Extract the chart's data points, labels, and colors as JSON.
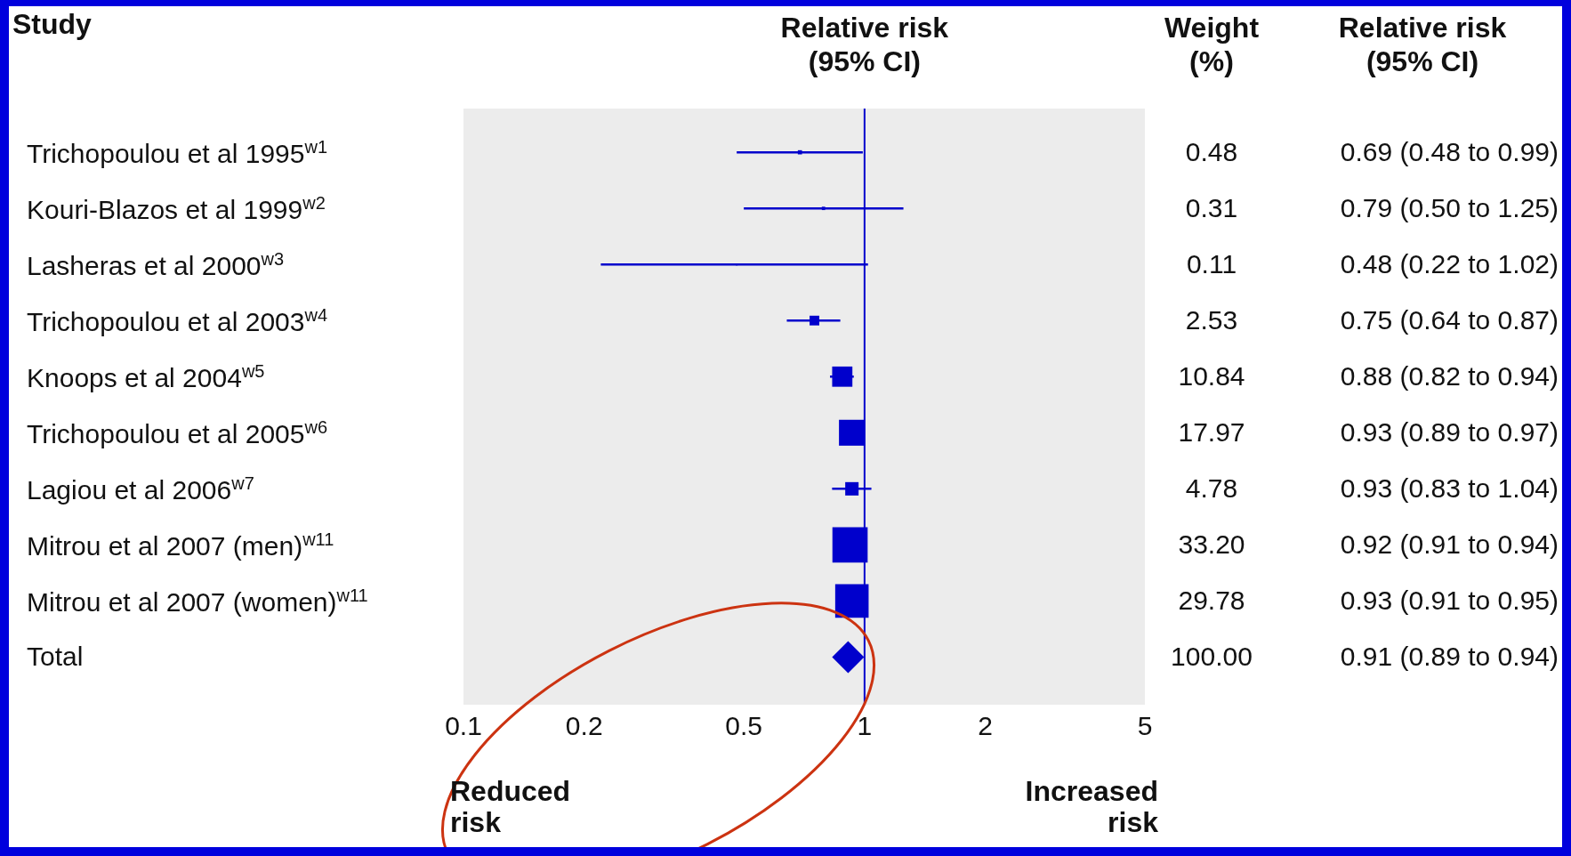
{
  "chart_data": {
    "type": "scatter",
    "orientation": "horizontal",
    "xlabel": "Relative risk (95% CI)",
    "categories": [
      "Trichopoulou et al 1995$^{w1}$",
      "Kouri-Blazos et al 1999$^{w2}$",
      "Lasheras et al 2000$^{w3}$",
      "Trichopoulou et al 2003$^{w4}$",
      "Knoops et al 2004$^{w5}$",
      "Trichopoulou et al 2005$^{w6}$",
      "Lagiou et al 2006$^{w7}$",
      "Mitrou et al 2007 (men)$^{w11}$",
      "Mitrou et al 2007 (women)$^{w11}$",
      "Total"
    ],
    "xlim": [
      0.1,
      5
    ],
    "xticks": [
      0.1,
      0.2,
      0.5,
      1,
      2,
      5
    ],
    "log": "x",
    "legend": false,
    "ref_lines": [
      {
        "axis": "x",
        "value": 1,
        "color": "#0000cc"
      }
    ],
    "annotations": [
      "Study",
      "Weight (%)",
      "Relative risk (95% CI)",
      "0.48",
      "0.31",
      "0.11",
      "2.53",
      "10.84",
      "17.97",
      "4.78",
      "33.20",
      "29.78",
      "100.00",
      "Reduced risk",
      "Increased risk",
      "0.91 (0.89 to 0.94)"
    ],
    "series": [
      {
        "type": "scatter",
        "marker": "square",
        "color": "#0000cc",
        "values": [
          0.69,
          0.79,
          0.48,
          0.75,
          0.88,
          0.93,
          0.93,
          0.92,
          0.93,
          null
        ],
        "errors": [
          [
            0.48,
            0.99
          ],
          [
            0.5,
            1.25
          ],
          [
            0.22,
            1.02
          ],
          [
            0.64,
            0.87
          ],
          [
            0.82,
            0.94
          ],
          null,
          [
            0.83,
            1.04
          ],
          null,
          null,
          null
        ],
        "sizes": [
          0.014,
          0.009,
          0.003,
          0.076,
          0.33,
          0.54,
          0.144,
          1,
          0.9,
          null
        ],
        "value_labels": [
          "0.69 (0.48 to 0.99)",
          "0.79 (0.50 to 1.25)",
          "0.48 (0.22 to 1.02)",
          "0.75 (0.64 to 0.87)",
          "0.88 (0.82 to 0.94)",
          "0.93 (0.89 to 0.97)",
          "0.93 (0.83 to 1.04)",
          "0.92 (0.91 to 0.94)",
          "0.93 (0.91 to 0.95)",
          null
        ]
      },
      {
        "type": "scatter",
        "marker": "diamond",
        "color": "#0000cc",
        "values": [
          null,
          null,
          null,
          null,
          null,
          null,
          null,
          null,
          null,
          0.91
        ]
      }
    ]
  }
}
